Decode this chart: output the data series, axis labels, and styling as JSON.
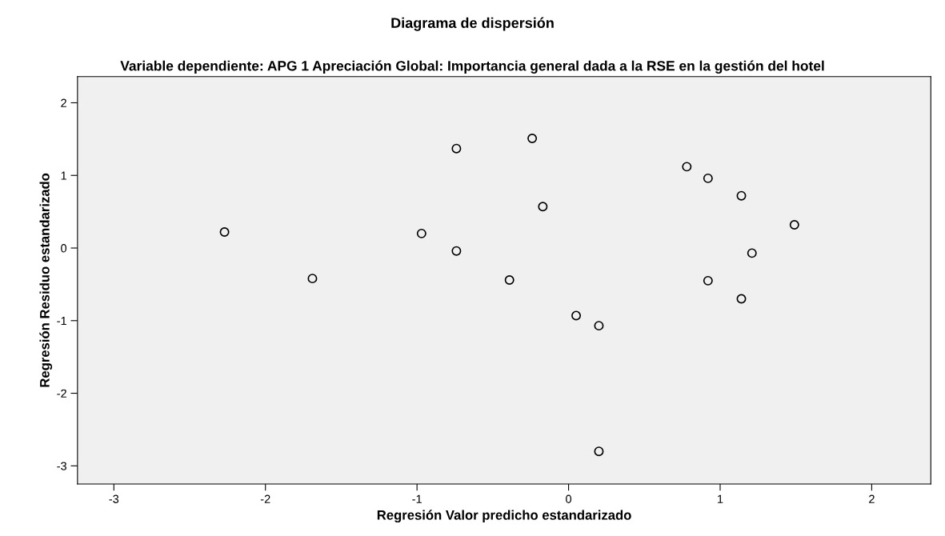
{
  "chart_data": {
    "type": "scatter",
    "title": "Diagrama de dispersión",
    "subtitle": "Variable dependiente: APG 1 Apreciación Global: Importancia general dada a la RSE en la gestión del hotel",
    "xlabel": "Regresión Valor predicho estandarizado",
    "ylabel": "Regresión Residuo estandarizado",
    "x": [
      -2.27,
      -1.69,
      -0.97,
      -0.74,
      -0.74,
      -0.39,
      -0.24,
      -0.17,
      0.05,
      0.2,
      0.2,
      0.78,
      0.92,
      1.14,
      1.49,
      1.21,
      0.92,
      1.14
    ],
    "values": [
      0.22,
      -0.42,
      0.2,
      1.37,
      -0.04,
      -0.44,
      1.51,
      0.57,
      -0.93,
      -1.07,
      -2.8,
      1.12,
      0.96,
      0.72,
      0.32,
      -0.07,
      -0.45,
      -0.7
    ],
    "color": "#000000",
    "marker": "circle",
    "xlim": [
      -3.24,
      2.39
    ],
    "ylim": [
      -3.25,
      2.36
    ],
    "xticks": [
      {
        "value": -3,
        "label": "-3"
      },
      {
        "value": -2,
        "label": "-2"
      },
      {
        "value": -1,
        "label": "-1"
      },
      0,
      1,
      2
    ],
    "yticks": [
      {
        "value": -3,
        "label": "-3"
      },
      {
        "value": -2,
        "label": "-2"
      },
      {
        "value": -1,
        "label": "-1"
      },
      0,
      1,
      2
    ],
    "grid": false,
    "legend": false
  }
}
